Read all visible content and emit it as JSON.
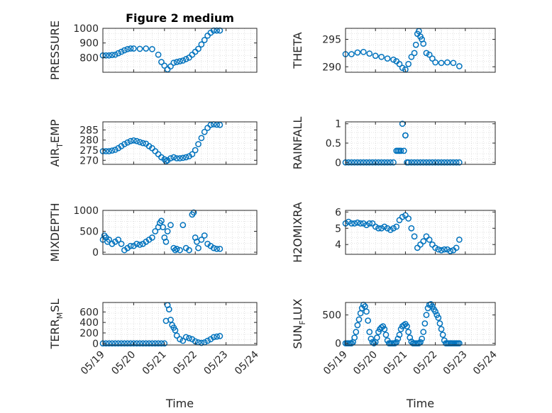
{
  "figure": {
    "title": "Figure 2 medium",
    "xlabel": "Time",
    "marker_color": "#0072BD",
    "x_ticks": [
      "05/19",
      "05/20",
      "05/21",
      "05/22",
      "05/23",
      "05/24"
    ],
    "grid": "minor dotted"
  },
  "chart_data": [
    {
      "type": "scatter",
      "ylabel": "PRESSURE",
      "ylabel_sub": "",
      "ylim": [
        700,
        1000
      ],
      "yticks": [
        "800",
        "900",
        "1000"
      ],
      "ytick_values": [
        800,
        900,
        1000
      ],
      "x": [
        0.0,
        0.1,
        0.2,
        0.3,
        0.4,
        0.5,
        0.6,
        0.7,
        0.8,
        0.9,
        1.0,
        1.2,
        1.4,
        1.6,
        1.8,
        1.9,
        2.0,
        2.1,
        2.2,
        2.3,
        2.4,
        2.5,
        2.6,
        2.7,
        2.8,
        2.9,
        3.0,
        3.1,
        3.2,
        3.3,
        3.4,
        3.5,
        3.6,
        3.7,
        3.8
      ],
      "y": [
        815,
        815,
        815,
        818,
        820,
        830,
        840,
        850,
        858,
        862,
        862,
        860,
        862,
        858,
        820,
        770,
        745,
        720,
        740,
        765,
        770,
        775,
        780,
        790,
        800,
        820,
        840,
        860,
        890,
        920,
        950,
        970,
        985,
        985,
        985
      ]
    },
    {
      "type": "scatter",
      "ylabel": "THETA",
      "ylabel_sub": "",
      "ylim": [
        289,
        297
      ],
      "yticks": [
        "290",
        "295"
      ],
      "ytick_values": [
        290,
        295
      ],
      "x": [
        0.0,
        0.2,
        0.4,
        0.6,
        0.8,
        1.0,
        1.2,
        1.4,
        1.6,
        1.7,
        1.8,
        1.9,
        2.0,
        2.1,
        2.2,
        2.3,
        2.35,
        2.4,
        2.45,
        2.5,
        2.55,
        2.6,
        2.7,
        2.8,
        2.9,
        3.0,
        3.2,
        3.4,
        3.6,
        3.8
      ],
      "y": [
        292.3,
        292.3,
        292.6,
        292.7,
        292.4,
        292.0,
        291.8,
        291.5,
        291.3,
        291.0,
        290.5,
        289.8,
        289.5,
        290.5,
        291.8,
        292.5,
        294.0,
        296.0,
        296.5,
        295.5,
        295.0,
        294.2,
        292.5,
        292.2,
        291.5,
        290.8,
        290.7,
        290.8,
        290.7,
        290.1
      ]
    },
    {
      "type": "scatter",
      "ylabel": "AIR",
      "ylabel_sub": "T",
      "ylabel_suffix": "EMP",
      "ylim": [
        268,
        289
      ],
      "yticks": [
        "270",
        "275",
        "280",
        "285"
      ],
      "ytick_values": [
        270,
        275,
        280,
        285
      ],
      "x": [
        0.0,
        0.1,
        0.2,
        0.3,
        0.4,
        0.5,
        0.6,
        0.7,
        0.8,
        0.9,
        1.0,
        1.1,
        1.2,
        1.3,
        1.4,
        1.5,
        1.6,
        1.7,
        1.8,
        1.9,
        2.0,
        2.05,
        2.1,
        2.2,
        2.3,
        2.4,
        2.5,
        2.6,
        2.7,
        2.8,
        2.9,
        3.0,
        3.1,
        3.2,
        3.3,
        3.4,
        3.5,
        3.6,
        3.7,
        3.8
      ],
      "y": [
        274.5,
        274.5,
        274.5,
        274.8,
        275.2,
        276.0,
        277.0,
        278.0,
        278.8,
        279.5,
        279.8,
        279.5,
        279.0,
        278.5,
        278.2,
        277.0,
        276.0,
        274.5,
        273.0,
        271.5,
        270.5,
        269.5,
        270.0,
        271.0,
        271.5,
        271.0,
        271.0,
        271.2,
        271.5,
        272.0,
        273.0,
        275.0,
        278.0,
        281.0,
        284.0,
        286.0,
        287.5,
        287.8,
        287.6,
        287.5
      ]
    },
    {
      "type": "scatter",
      "ylabel": "RAINFALL",
      "ylabel_sub": "",
      "ylim": [
        -0.05,
        1.05
      ],
      "yticks": [
        "0",
        "0.5",
        "1"
      ],
      "ytick_values": [
        0,
        0.5,
        1
      ],
      "x": [
        0.0,
        0.1,
        0.2,
        0.3,
        0.4,
        0.5,
        0.6,
        0.7,
        0.8,
        0.9,
        1.0,
        1.1,
        1.2,
        1.3,
        1.4,
        1.5,
        1.6,
        1.7,
        1.75,
        1.8,
        1.85,
        1.9,
        1.95,
        2.0,
        2.0,
        2.05,
        2.1,
        2.2,
        2.3,
        2.4,
        2.5,
        2.6,
        2.7,
        2.8,
        2.9,
        3.0,
        3.1,
        3.2,
        3.3,
        3.4,
        3.5,
        3.6,
        3.7,
        3.8
      ],
      "y": [
        0,
        0,
        0,
        0,
        0,
        0,
        0,
        0,
        0,
        0,
        0,
        0,
        0,
        0,
        0,
        0,
        0,
        0.3,
        0.3,
        0.3,
        0.3,
        1.0,
        0.3,
        0.7,
        0.7,
        0,
        0,
        0,
        0,
        0,
        0,
        0,
        0,
        0,
        0,
        0,
        0,
        0,
        0,
        0,
        0,
        0,
        0,
        0
      ]
    },
    {
      "type": "scatter",
      "ylabel": "MIXDEPTH",
      "ylabel_sub": "",
      "ylim": [
        -50,
        1000
      ],
      "yticks": [
        "0",
        "500",
        "1000"
      ],
      "ytick_values": [
        0,
        500,
        1000
      ],
      "x": [
        0.0,
        0.05,
        0.1,
        0.15,
        0.2,
        0.3,
        0.4,
        0.5,
        0.6,
        0.7,
        0.8,
        0.9,
        1.0,
        1.1,
        1.2,
        1.3,
        1.4,
        1.5,
        1.6,
        1.7,
        1.8,
        1.85,
        1.9,
        1.95,
        2.0,
        2.05,
        2.1,
        2.2,
        2.3,
        2.35,
        2.4,
        2.5,
        2.6,
        2.7,
        2.8,
        2.9,
        2.95,
        3.0,
        3.05,
        3.1,
        3.2,
        3.3,
        3.4,
        3.5,
        3.6,
        3.7,
        3.8
      ],
      "y": [
        300,
        400,
        350,
        250,
        300,
        200,
        250,
        300,
        200,
        50,
        100,
        150,
        150,
        200,
        180,
        200,
        250,
        300,
        350,
        500,
        600,
        700,
        750,
        600,
        350,
        250,
        500,
        650,
        100,
        50,
        80,
        50,
        650,
        100,
        50,
        900,
        950,
        350,
        250,
        100,
        300,
        400,
        200,
        150,
        100,
        80,
        80
      ]
    },
    {
      "type": "scatter",
      "ylabel": "H2OMIXRA",
      "ylabel_sub": "",
      "ylim": [
        3.4,
        6.1
      ],
      "yticks": [
        "4",
        "5",
        "6"
      ],
      "ytick_values": [
        4,
        5,
        6
      ],
      "x": [
        0.0,
        0.1,
        0.2,
        0.3,
        0.4,
        0.5,
        0.6,
        0.7,
        0.8,
        0.9,
        1.0,
        1.1,
        1.2,
        1.3,
        1.4,
        1.5,
        1.6,
        1.7,
        1.8,
        1.9,
        2.0,
        2.1,
        2.2,
        2.3,
        2.4,
        2.5,
        2.6,
        2.7,
        2.8,
        2.9,
        3.0,
        3.1,
        3.2,
        3.3,
        3.4,
        3.5,
        3.6,
        3.7,
        3.8
      ],
      "y": [
        5.3,
        5.4,
        5.3,
        5.3,
        5.35,
        5.3,
        5.3,
        5.2,
        5.3,
        5.3,
        5.1,
        5.0,
        5.0,
        5.1,
        5.0,
        4.9,
        5.0,
        5.1,
        5.5,
        5.7,
        5.8,
        5.6,
        5.0,
        4.5,
        3.8,
        4.0,
        4.2,
        4.5,
        4.3,
        4.0,
        3.8,
        3.7,
        3.65,
        3.7,
        3.7,
        3.6,
        3.65,
        3.8,
        4.3
      ]
    },
    {
      "type": "scatter",
      "ylabel": "TERR",
      "ylabel_sub": "M",
      "ylabel_suffix": "SL",
      "ylim": [
        -30,
        780
      ],
      "yticks": [
        "0",
        "200",
        "400",
        "600"
      ],
      "ytick_values": [
        0,
        200,
        400,
        600
      ],
      "x": [
        0.0,
        0.1,
        0.2,
        0.3,
        0.4,
        0.5,
        0.6,
        0.7,
        0.8,
        0.9,
        1.0,
        1.1,
        1.2,
        1.3,
        1.4,
        1.5,
        1.6,
        1.7,
        1.8,
        1.9,
        2.0,
        2.05,
        2.1,
        2.15,
        2.2,
        2.25,
        2.3,
        2.35,
        2.4,
        2.5,
        2.6,
        2.7,
        2.8,
        2.9,
        3.0,
        3.1,
        3.2,
        3.3,
        3.4,
        3.5,
        3.6,
        3.7,
        3.8
      ],
      "y": [
        0,
        0,
        0,
        0,
        0,
        0,
        0,
        0,
        0,
        0,
        0,
        0,
        0,
        0,
        0,
        0,
        0,
        0,
        0,
        0,
        0,
        430,
        730,
        650,
        450,
        350,
        300,
        250,
        150,
        80,
        50,
        120,
        100,
        80,
        40,
        20,
        10,
        20,
        50,
        80,
        120,
        130,
        140
      ]
    },
    {
      "type": "scatter",
      "ylabel": "SUN",
      "ylabel_sub": "F",
      "ylabel_suffix": "LUX",
      "ylim": [
        -30,
        720
      ],
      "yticks": [
        "0",
        "500"
      ],
      "ytick_values": [
        0,
        500
      ],
      "x": [
        0.0,
        0.05,
        0.1,
        0.15,
        0.2,
        0.25,
        0.3,
        0.35,
        0.4,
        0.45,
        0.5,
        0.55,
        0.6,
        0.65,
        0.7,
        0.75,
        0.8,
        0.85,
        0.9,
        0.95,
        1.0,
        1.05,
        1.1,
        1.15,
        1.2,
        1.25,
        1.3,
        1.35,
        1.4,
        1.45,
        1.5,
        1.55,
        1.6,
        1.65,
        1.7,
        1.75,
        1.8,
        1.85,
        1.9,
        1.95,
        2.0,
        2.05,
        2.1,
        2.15,
        2.2,
        2.25,
        2.3,
        2.35,
        2.4,
        2.45,
        2.5,
        2.55,
        2.6,
        2.65,
        2.7,
        2.75,
        2.8,
        2.85,
        2.9,
        2.95,
        3.0,
        3.05,
        3.1,
        3.15,
        3.2,
        3.25,
        3.3,
        3.35,
        3.4,
        3.45,
        3.5,
        3.55,
        3.6,
        3.65,
        3.7,
        3.75,
        3.8
      ],
      "y": [
        0,
        0,
        0,
        0,
        0,
        20,
        100,
        200,
        320,
        420,
        530,
        620,
        680,
        650,
        560,
        400,
        200,
        80,
        20,
        0,
        20,
        100,
        200,
        250,
        280,
        300,
        250,
        150,
        50,
        0,
        0,
        0,
        0,
        0,
        20,
        80,
        150,
        250,
        300,
        320,
        340,
        300,
        200,
        100,
        30,
        0,
        0,
        0,
        0,
        0,
        20,
        80,
        200,
        350,
        500,
        620,
        680,
        690,
        650,
        600,
        560,
        500,
        450,
        350,
        250,
        150,
        50,
        0,
        0,
        0,
        0,
        0,
        0,
        0,
        0,
        0,
        0
      ]
    }
  ]
}
